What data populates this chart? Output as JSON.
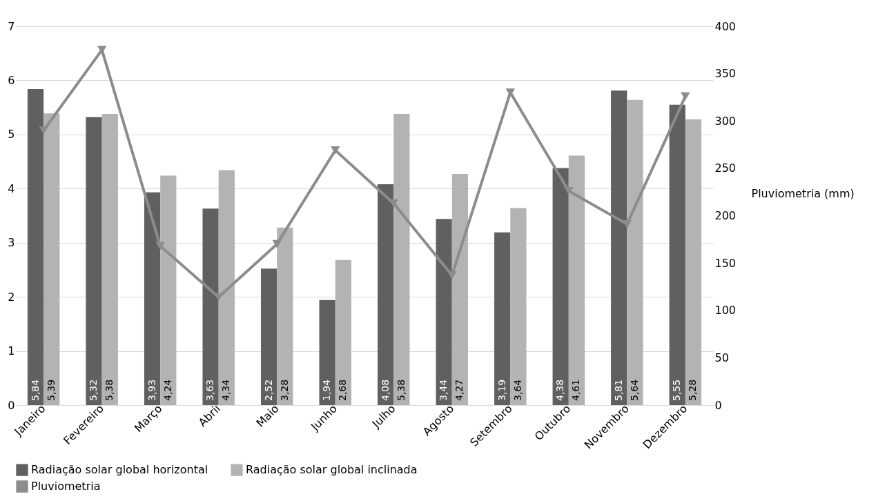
{
  "chart_data": {
    "type": "bar",
    "categories": [
      "Janeiro",
      "Fevereiro",
      "Março",
      "Abril",
      "Maio",
      "Junho",
      "Julho",
      "Agosto",
      "Setembro",
      "Outubro",
      "Novembro",
      "Dezembro"
    ],
    "series": [
      {
        "name": "Radiação solar global horizontal",
        "color": "#606060",
        "values": [
          5.84,
          5.32,
          3.93,
          3.63,
          2.52,
          1.94,
          4.08,
          3.44,
          3.19,
          4.38,
          5.81,
          5.55
        ],
        "value_labels": [
          "5,84",
          "5,32",
          "3,93",
          "3,63",
          "2,52",
          "1,94",
          "4,08",
          "3,44",
          "3,19",
          "4,38",
          "5,81",
          "5,55"
        ]
      },
      {
        "name": "Radiação solar global inclinada",
        "color": "#b3b3b3",
        "values": [
          5.39,
          5.38,
          4.24,
          4.34,
          3.28,
          2.68,
          5.38,
          4.27,
          3.64,
          4.61,
          5.64,
          5.28
        ],
        "value_labels": [
          "5,39",
          "5,38",
          "4,24",
          "4,34",
          "3,28",
          "2,68",
          "5,38",
          "4,27",
          "3,64",
          "4,61",
          "5,64",
          "5,28"
        ]
      },
      {
        "name": "Pluviometria",
        "color": "#8c8c8c",
        "type": "line",
        "axis": "y2",
        "marker": "triangle",
        "values": [
          290,
          375,
          168,
          114,
          170,
          269,
          213,
          137,
          330,
          226,
          191,
          326
        ]
      }
    ],
    "y2label": "Pluviometria (mm)",
    "ylim": [
      0,
      7
    ],
    "yticks": [
      0,
      1,
      2,
      3,
      4,
      5,
      6,
      7
    ],
    "y2lim": [
      0,
      400
    ],
    "y2ticks": [
      0,
      50,
      100,
      150,
      200,
      250,
      300,
      350,
      400
    ],
    "grid": "y",
    "legend": "bottom"
  }
}
